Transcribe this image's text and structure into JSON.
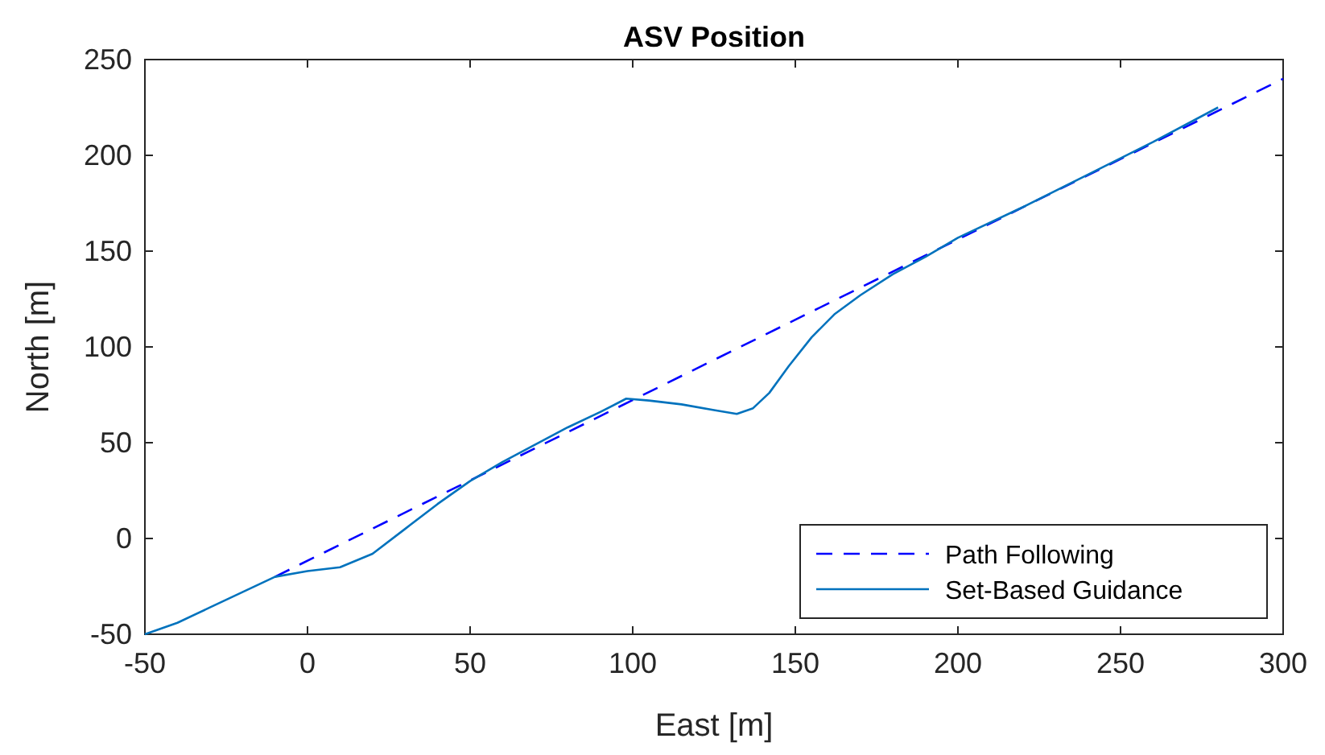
{
  "chart_data": {
    "type": "line",
    "title": "ASV Position",
    "xlabel": "East [m]",
    "ylabel": "North [m]",
    "xlim": [
      -50,
      300
    ],
    "xticks": [
      -50,
      0,
      50,
      100,
      150,
      200,
      250,
      300
    ],
    "ylim": [
      -50,
      250
    ],
    "yticks": [
      -50,
      0,
      50,
      100,
      150,
      200,
      250
    ],
    "legend": "bottom right",
    "grid": false,
    "series": [
      {
        "name": "Path Following",
        "color": "#0000ff",
        "line_style": "dashed",
        "x": [
          -10,
          300
        ],
        "values": [
          -20,
          240
        ]
      },
      {
        "name": "Set-Based Guidance",
        "color": "#0072bd",
        "line_style": "solid",
        "x": [
          -50,
          -40,
          -30,
          -20,
          -10,
          0,
          10,
          20,
          30,
          40,
          50,
          60,
          70,
          80,
          90,
          98,
          105,
          115,
          125,
          132,
          137,
          142,
          148,
          155,
          162,
          170,
          180,
          190,
          200,
          220,
          240,
          260,
          280
        ],
        "values": [
          -50,
          -44,
          -36,
          -28,
          -20,
          -17,
          -15,
          -8,
          5,
          18,
          30,
          40,
          49,
          58,
          66,
          73,
          72,
          70,
          67,
          65,
          68,
          76,
          90,
          105,
          117,
          127,
          138,
          147,
          157,
          173,
          190,
          207,
          225
        ]
      }
    ]
  }
}
